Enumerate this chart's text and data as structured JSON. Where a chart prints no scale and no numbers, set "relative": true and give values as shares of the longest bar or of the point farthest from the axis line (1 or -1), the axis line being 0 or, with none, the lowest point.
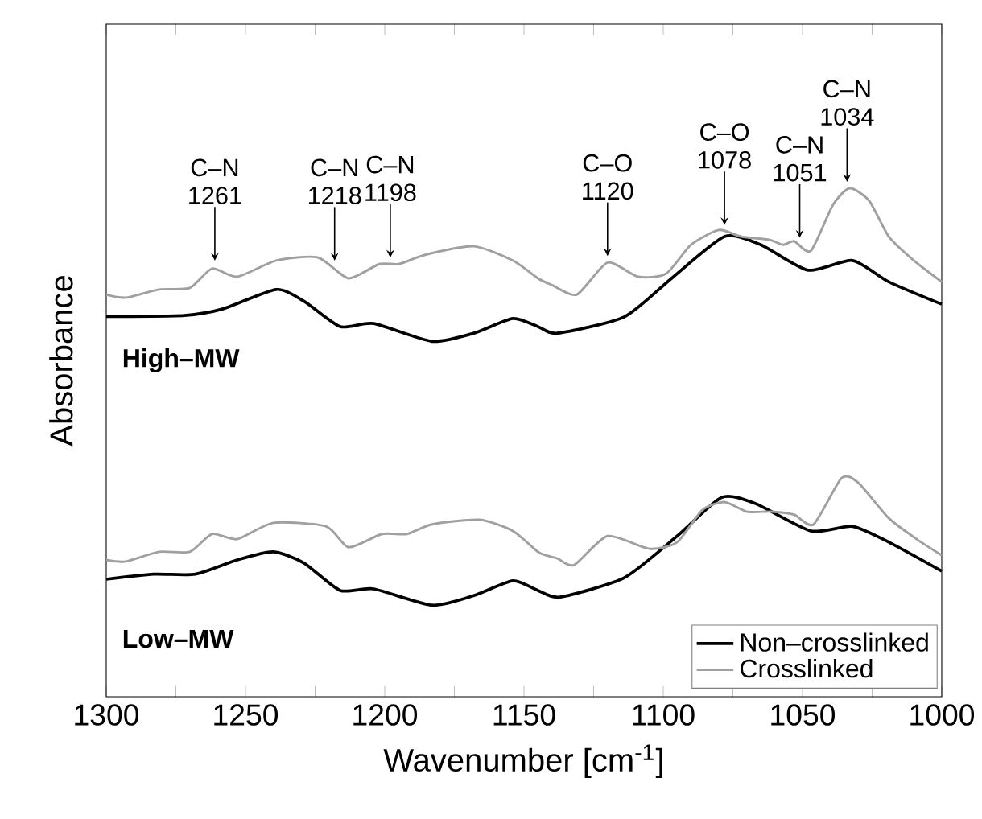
{
  "chart_data": {
    "type": "line",
    "relative": true,
    "xlabel": "Wavenumber [cm$^{-1}$]",
    "ylabel": "Absorbance",
    "xlim": [
      1300,
      1000
    ],
    "xticks": [
      1300,
      {
        "value": 1275,
        "label": null
      },
      1250,
      {
        "value": 1225,
        "label": null
      },
      1200,
      {
        "value": 1175,
        "label": null
      },
      1150,
      {
        "value": 1125,
        "label": null
      },
      1100,
      {
        "value": 1075,
        "label": null
      },
      1050,
      {
        "value": 1025,
        "label": null
      },
      1000
    ],
    "legend": "bottom right",
    "line_style": "solid",
    "marker": "none",
    "series": [
      {
        "name": "Non–crosslinked",
        "color": "#000000",
        "x": [
          1300,
          1272,
          1258,
          1239,
          1229,
          1216,
          1204,
          1183,
          1168,
          1154,
          1145,
          1138,
          1114,
          1097,
          1078,
          1065,
          1048,
          1032,
          1019,
          1000
        ],
        "values": [
          0.748,
          0.75,
          0.763,
          0.801,
          0.778,
          0.728,
          0.734,
          0.699,
          0.715,
          0.744,
          0.728,
          0.715,
          0.747,
          0.823,
          0.905,
          0.889,
          0.839,
          0.858,
          0.816,
          0.772
        ]
      },
      {
        "name": "Crosslinked",
        "color": "#a0a0a0",
        "x": [
          1300,
          1293,
          1281,
          1270,
          1262,
          1253,
          1239,
          1224,
          1213,
          1202,
          1195,
          1185,
          1168,
          1154,
          1145,
          1140,
          1131,
          1120,
          1109,
          1099,
          1090,
          1080,
          1072,
          1062,
          1057,
          1053,
          1047,
          1039,
          1033,
          1026,
          1019,
          1010,
          1000
        ],
        "values": [
          0.791,
          0.785,
          0.801,
          0.804,
          0.842,
          0.826,
          0.858,
          0.864,
          0.823,
          0.851,
          0.851,
          0.87,
          0.886,
          0.858,
          0.823,
          0.81,
          0.791,
          0.854,
          0.826,
          0.832,
          0.889,
          0.918,
          0.905,
          0.899,
          0.889,
          0.896,
          0.877,
          0.968,
          1.0,
          0.975,
          0.905,
          0.858,
          0.816
        ]
      },
      {
        "color": "#000000",
        "x": [
          1300,
          1283,
          1268,
          1253,
          1240,
          1229,
          1216,
          1204,
          1183,
          1168,
          1154,
          1145,
          1137,
          1114,
          1095,
          1079,
          1067,
          1047,
          1032,
          1019,
          1000
        ],
        "values": [
          0.231,
          0.241,
          0.241,
          0.269,
          0.285,
          0.263,
          0.209,
          0.212,
          0.18,
          0.199,
          0.228,
          0.209,
          0.196,
          0.234,
          0.316,
          0.392,
          0.38,
          0.326,
          0.335,
          0.304,
          0.247
        ]
      },
      {
        "color": "#a0a0a0",
        "x": [
          1300,
          1293,
          1281,
          1270,
          1262,
          1253,
          1240,
          1221,
          1213,
          1201,
          1192,
          1183,
          1166,
          1154,
          1145,
          1142,
          1138,
          1132,
          1120,
          1105,
          1095,
          1086,
          1078,
          1070,
          1061,
          1053,
          1046,
          1036,
          1030,
          1019,
          1009,
          1000
        ],
        "values": [
          0.269,
          0.266,
          0.285,
          0.285,
          0.32,
          0.31,
          0.342,
          0.335,
          0.294,
          0.32,
          0.32,
          0.339,
          0.348,
          0.326,
          0.285,
          0.278,
          0.272,
          0.259,
          0.316,
          0.291,
          0.304,
          0.367,
          0.383,
          0.364,
          0.364,
          0.358,
          0.339,
          0.43,
          0.421,
          0.351,
          0.31,
          0.278
        ]
      }
    ],
    "annotations": [
      {
        "text": "C–N 1261",
        "x": 1261,
        "y": 0.845
      },
      {
        "text": "C–N 1218",
        "x": 1218,
        "y": 0.845
      },
      {
        "text": "C–N 1198",
        "x": 1198,
        "y": 0.851
      },
      {
        "text": "C–O 1120",
        "x": 1120,
        "y": 0.854
      },
      {
        "text": "C–O 1078",
        "x": 1078,
        "y": 0.915
      },
      {
        "text": "C–N 1051",
        "x": 1051,
        "y": 0.89
      },
      {
        "text": "C–N 1034",
        "x": 1034,
        "y": 1.0
      },
      "**High–MW**",
      "**Low–MW**"
    ]
  }
}
